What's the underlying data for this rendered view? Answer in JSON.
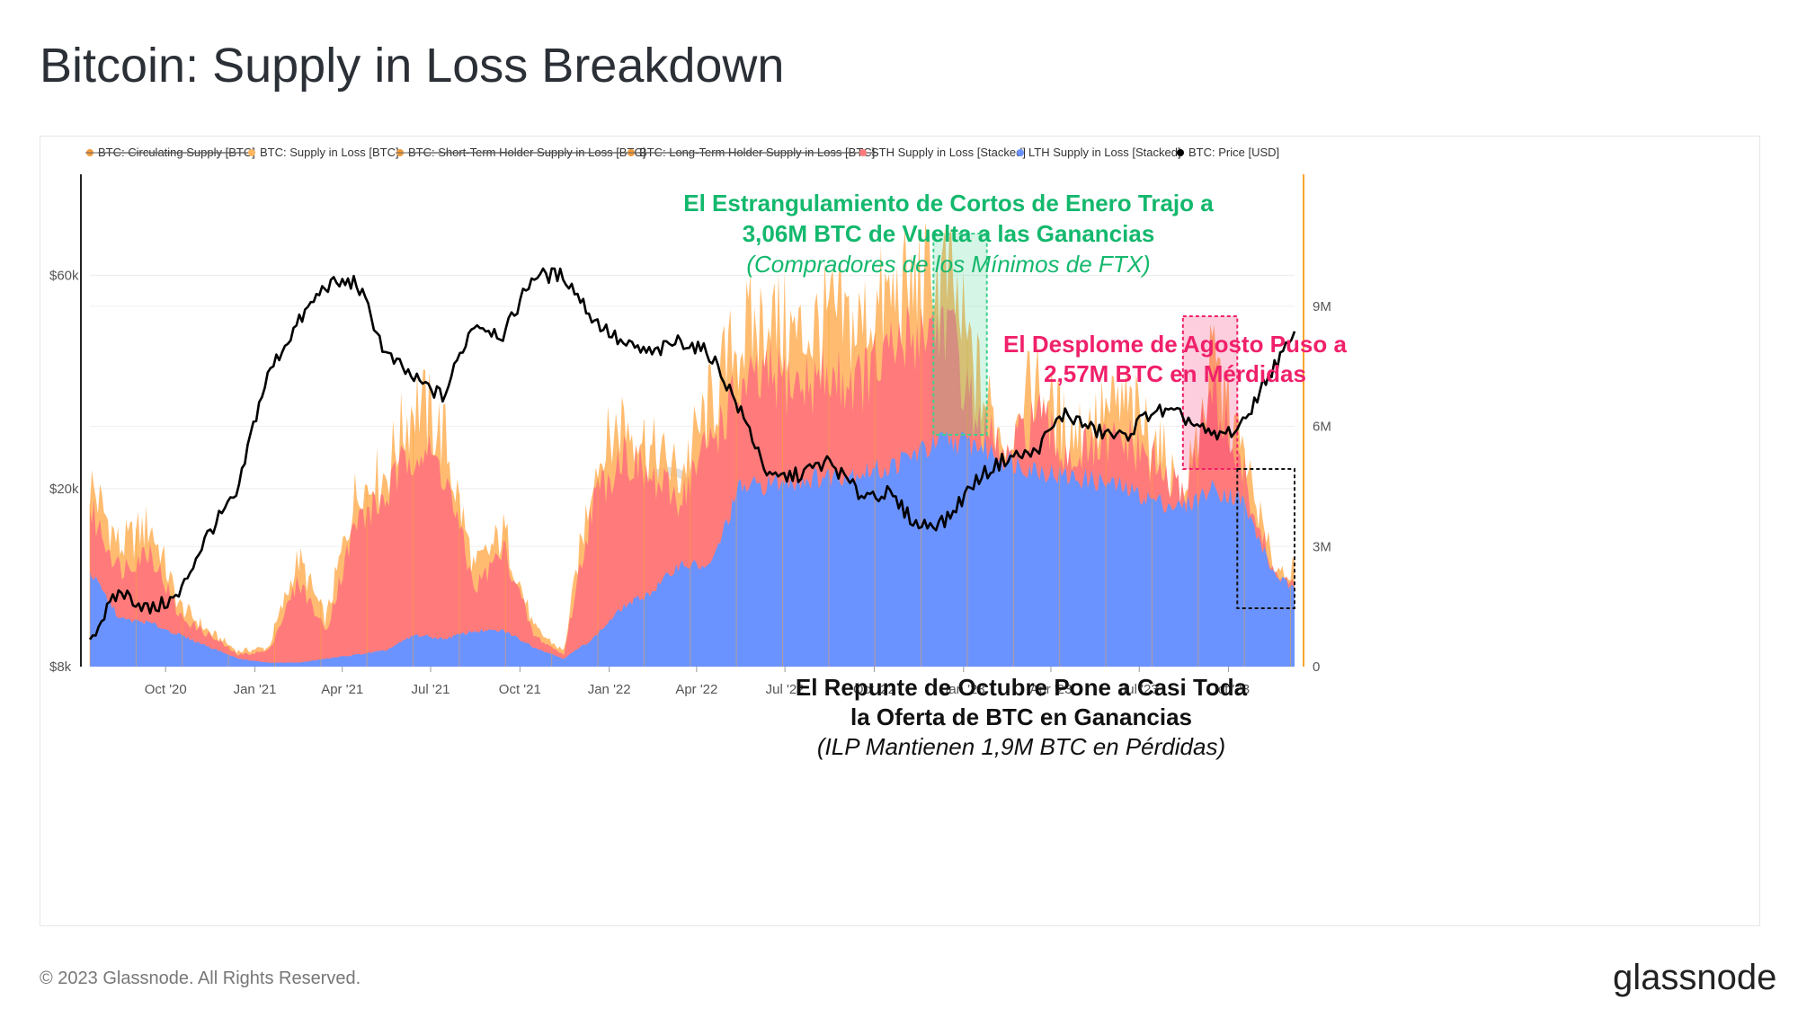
{
  "title": "Bitcoin: Supply in Loss Breakdown",
  "footer": {
    "copyright": "© 2023 Glassnode. All Rights Reserved.",
    "brand": "glassnode"
  },
  "watermark": "glass",
  "colors": {
    "sth": "#ff7b7b",
    "lth": "#6b93ff",
    "supply_in_loss": "#ffb561",
    "price": "#000000",
    "right_axis": "#f7a531",
    "green_box": "#3ed08c",
    "pink_box": "#f0206a"
  },
  "chart_data": {
    "type": "area",
    "legend": [
      {
        "label": "BTC: Circulating Supply [BTC]",
        "color": "#f19a3a",
        "hidden": true
      },
      {
        "label": "BTC: Supply in Loss [BTC]",
        "color": "#ffb561",
        "hidden": false
      },
      {
        "label": "BTC: Short-Term Holder Supply in Loss [BTC]",
        "color": "#f19a3a",
        "hidden": true
      },
      {
        "label": "BTC: Long-Term Holder Supply in Loss [BTC]",
        "color": "#f19a3a",
        "hidden": true
      },
      {
        "label": "STH Supply in Loss [Stacked]",
        "color": "#ff7b7b",
        "hidden": false
      },
      {
        "label": "LTH Supply in Loss [Stacked]",
        "color": "#6b93ff",
        "hidden": false
      },
      {
        "label": "BTC: Price [USD]",
        "color": "#000000",
        "hidden": false
      }
    ],
    "x_ticks": [
      "Oct '20",
      "Jan '21",
      "Apr '21",
      "Jul '21",
      "Oct '21",
      "Jan '22",
      "Apr '22",
      "Jul '22",
      "Oct '22",
      "Jan '23",
      "Apr '23",
      "Jul '23",
      "Oct '23"
    ],
    "y_left_ticks": [
      "$60k",
      "$20k",
      "$8k"
    ],
    "y_left_scale": "log",
    "y_right_ticks": [
      "9M",
      "6M",
      "3M",
      "0"
    ],
    "y_right_range": [
      0,
      12000000
    ],
    "x_range": [
      "2020-07-15",
      "2023-12-08"
    ],
    "dates": [
      "2020-07-15",
      "2020-08-15",
      "2020-09-15",
      "2020-10-15",
      "2020-11-15",
      "2020-12-15",
      "2021-01-15",
      "2021-02-15",
      "2021-03-15",
      "2021-04-15",
      "2021-05-15",
      "2021-06-15",
      "2021-07-15",
      "2021-08-15",
      "2021-09-15",
      "2021-10-15",
      "2021-11-15",
      "2021-12-15",
      "2022-01-15",
      "2022-02-15",
      "2022-03-15",
      "2022-04-15",
      "2022-05-15",
      "2022-06-15",
      "2022-07-15",
      "2022-08-15",
      "2022-09-15",
      "2022-10-15",
      "2022-11-15",
      "2022-12-15",
      "2023-01-15",
      "2023-02-15",
      "2023-03-15",
      "2023-04-15",
      "2023-05-15",
      "2023-06-15",
      "2023-07-15",
      "2023-08-15",
      "2023-09-15",
      "2023-10-15",
      "2023-11-15",
      "2023-12-08"
    ],
    "series": [
      {
        "name": "BTC: Price [USD]",
        "axis": "left",
        "values": [
          9200,
          11800,
          10700,
          11500,
          16000,
          19500,
          36000,
          47000,
          57000,
          58000,
          40000,
          35000,
          32000,
          47000,
          44000,
          60000,
          60000,
          48000,
          42000,
          40000,
          43000,
          40000,
          30000,
          21000,
          21500,
          23000,
          19500,
          19500,
          16500,
          17000,
          21000,
          23500,
          24000,
          29500,
          27000,
          26000,
          30000,
          29000,
          26000,
          27500,
          37000,
          43500
        ]
      },
      {
        "name": "BTC: Supply in Loss [BTC]",
        "axis": "right",
        "values": [
          4800000,
          3100000,
          3700000,
          1600000,
          900000,
          400000,
          500000,
          2800000,
          1200000,
          4500000,
          5000000,
          7000000,
          6000000,
          2500000,
          3500000,
          1000000,
          400000,
          5000000,
          6500000,
          5500000,
          5000000,
          6800000,
          8500000,
          9000000,
          8500000,
          9000000,
          8800000,
          9500000,
          9800000,
          10100000,
          7500000,
          5500000,
          7400000,
          6100000,
          6300000,
          6800000,
          6000000,
          4200000,
          7900000,
          5500000,
          2600000,
          2400000
        ]
      },
      {
        "name": "LTH Supply in Loss [Stacked]",
        "axis": "right",
        "values": [
          2400000,
          1200000,
          1100000,
          800000,
          500000,
          200000,
          100000,
          100000,
          200000,
          300000,
          400000,
          800000,
          700000,
          900000,
          900000,
          500000,
          200000,
          700000,
          1500000,
          1900000,
          2600000,
          2500000,
          4500000,
          4600000,
          4700000,
          4800000,
          4900000,
          5000000,
          5400000,
          5700000,
          5600000,
          5200000,
          5000000,
          4800000,
          4700000,
          4500000,
          4200000,
          4000000,
          4500000,
          4200000,
          2400000,
          1900000
        ]
      },
      {
        "name": "STH Supply in Loss [Stacked]",
        "axis": "right",
        "values": [
          4000000,
          2500000,
          3000000,
          1300000,
          800000,
          300000,
          400000,
          2200000,
          900000,
          3700000,
          4300000,
          5700000,
          5000000,
          2000000,
          3000000,
          800000,
          300000,
          4200000,
          5500000,
          4700000,
          4300000,
          5800000,
          7000000,
          7400000,
          7200000,
          7400000,
          7300000,
          7900000,
          8600000,
          8800000,
          6200000,
          5200000,
          6500000,
          5400000,
          5500000,
          5800000,
          5200000,
          4300000,
          7000000,
          5000000,
          2400000,
          2000000
        ]
      }
    ],
    "annotations": [
      {
        "lines": [
          "El Estrangulamiento de Cortos de Enero Trajo a",
          "3,06M BTC de Vuelta a las Ganancias"
        ],
        "subtitle": "(Compradores de los Mínimos de FTX)",
        "color": "#14b86d"
      },
      {
        "lines": [
          "El Desplome de Agosto Puso a",
          "2,57M BTC en Mérdidas"
        ],
        "subtitle": "",
        "color": "#f0206a"
      },
      {
        "lines": [
          "El Repunte de Octubre Pone a Casi Toda",
          "la Oferta de BTC en Ganancias"
        ],
        "subtitle": "(ILP Mantienen 1,9M BTC en Pérdidas)",
        "color": "#111111"
      }
    ],
    "highlight_boxes": [
      {
        "from": "2022-12-01",
        "to": "2023-01-25",
        "style": "green-fill"
      },
      {
        "from": "2023-08-15",
        "to": "2023-10-10",
        "style": "pink-fill"
      },
      {
        "from": "2023-10-10",
        "to": "2023-12-08",
        "style": "black-dotted"
      }
    ]
  }
}
